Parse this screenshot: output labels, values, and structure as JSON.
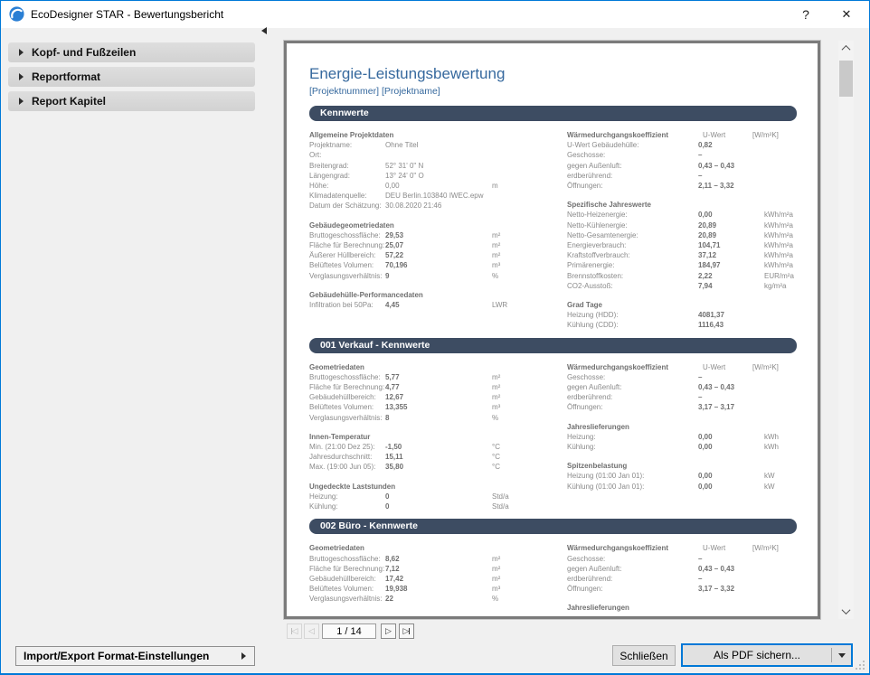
{
  "window": {
    "title": "EcoDesigner STAR - Bewertungsbericht",
    "help_icon": "?",
    "close_icon": "✕"
  },
  "sidebar": {
    "items": [
      "Kopf- und Fußzeilen",
      "Reportformat",
      "Report Kapitel"
    ]
  },
  "preview": {
    "pager": {
      "page_label": "1 / 14",
      "first_icon": "◁",
      "prev_icon": "◁",
      "next_icon": "▷",
      "last_icon": "▷"
    }
  },
  "footer": {
    "import_export_label": "Import/Export Format-Einstellungen",
    "close_label": "Schließen",
    "save_pdf_label": "Als PDF sichern..."
  },
  "report": {
    "title": "Energie-Leistungsbewertung",
    "subtitle": "[Projektnummer] [Projektname]",
    "colors": {
      "accent": "#36699e",
      "section_bar": "#3d4c62"
    },
    "sections": [
      {
        "header": "Kennwerte",
        "columns": [
          {
            "groups": [
              {
                "title": "Allgemeine Projektdaten",
                "bold": false,
                "rows": [
                  [
                    "Projektname:",
                    "Ohne Titel",
                    ""
                  ],
                  [
                    "Ort:",
                    "",
                    ""
                  ],
                  [
                    "Breitengrad:",
                    "52° 31' 0\" N",
                    ""
                  ],
                  [
                    "Längengrad:",
                    "13° 24' 0\" O",
                    ""
                  ],
                  [
                    "Höhe:",
                    "0,00",
                    "m"
                  ],
                  [
                    "Klimadatenquelle:",
                    "DEU  Berlin.103840  IWEC.epw",
                    ""
                  ],
                  [
                    "Datum der Schätzung:",
                    "30.08.2020 21:46",
                    ""
                  ]
                ]
              },
              {
                "title": "Gebäudegeometriedaten",
                "rows": [
                  [
                    "Bruttogeschossfläche:",
                    "29,53",
                    "m²"
                  ],
                  [
                    "Fläche für Berechnung:",
                    "25,07",
                    "m²"
                  ],
                  [
                    "Äußerer Hüllbereich:",
                    "57,22",
                    "m²"
                  ],
                  [
                    "Belüftetes Volumen:",
                    "70,196",
                    "m³"
                  ],
                  [
                    "Verglasungsverhältnis:",
                    "9",
                    "%"
                  ]
                ]
              },
              {
                "title": "Gebäudehülle-Performancedaten",
                "rows": [
                  [
                    "Infiltration bei 50Pa:",
                    "4,45",
                    "LWR"
                  ]
                ]
              }
            ]
          },
          {
            "groups": [
              {
                "title": "Wärmedurchgangskoeffizient",
                "head_value": "U-Wert",
                "head_unit": "[W/m²K]",
                "rows": [
                  [
                    "U-Wert Gebäudehülle:",
                    "0,82",
                    ""
                  ],
                  [
                    "Geschosse:",
                    "–",
                    ""
                  ],
                  [
                    "gegen Außenluft:",
                    "0,43 – 0,43",
                    ""
                  ],
                  [
                    "erdberührend:",
                    "–",
                    ""
                  ],
                  [
                    "Öffnungen:",
                    "2,11 – 3,32",
                    ""
                  ]
                ]
              },
              {
                "title": "Spezifische Jahreswerte",
                "rows": [
                  [
                    "Netto-Heizenergie:",
                    "0,00",
                    "kWh/m²a"
                  ],
                  [
                    "Netto-Kühlenergie:",
                    "20,89",
                    "kWh/m²a"
                  ],
                  [
                    "Netto-Gesamtenergie:",
                    "20,89",
                    "kWh/m²a"
                  ],
                  [
                    "Energieverbrauch:",
                    "104,71",
                    "kWh/m²a"
                  ],
                  [
                    "Kraftstoffverbrauch:",
                    "37,12",
                    "kWh/m²a"
                  ],
                  [
                    "Primärenergie:",
                    "184,97",
                    "kWh/m²a"
                  ],
                  [
                    "Brennstoffkosten:",
                    "2,22",
                    "EUR/m²a"
                  ],
                  [
                    "CO2-Ausstoß:",
                    "7,94",
                    "kg/m²a"
                  ]
                ]
              },
              {
                "title": "Grad Tage",
                "rows": [
                  [
                    "Heizung (HDD):",
                    "4081,37",
                    ""
                  ],
                  [
                    "Kühlung (CDD):",
                    "1116,43",
                    ""
                  ]
                ]
              }
            ]
          }
        ]
      },
      {
        "header": "001 Verkauf - Kennwerte",
        "columns": [
          {
            "groups": [
              {
                "title": "Geometriedaten",
                "rows": [
                  [
                    "Bruttogeschossfläche:",
                    "5,77",
                    "m²"
                  ],
                  [
                    "Fläche für Berechnung:",
                    "4,77",
                    "m²"
                  ],
                  [
                    "Gebäudehüllbereich:",
                    "12,67",
                    "m²"
                  ],
                  [
                    "Belüftetes Volumen:",
                    "13,355",
                    "m³"
                  ],
                  [
                    "Verglasungsverhältnis:",
                    "8",
                    "%"
                  ]
                ]
              },
              {
                "title": "Innen-Temperatur",
                "rows": [
                  [
                    "Min. (21:00 Dez 25):",
                    "-1,50",
                    "°C"
                  ],
                  [
                    "Jahresdurchschnitt:",
                    "15,11",
                    "°C"
                  ],
                  [
                    "Max. (19:00 Jun 05):",
                    "35,80",
                    "°C"
                  ]
                ]
              },
              {
                "title": "Ungedeckte Laststunden",
                "rows": [
                  [
                    "Heizung:",
                    "0",
                    "Std/a"
                  ],
                  [
                    "Kühlung:",
                    "0",
                    "Std/a"
                  ]
                ]
              }
            ]
          },
          {
            "groups": [
              {
                "title": "Wärmedurchgangskoeffizient",
                "head_value": "U-Wert",
                "head_unit": "[W/m²K]",
                "rows": [
                  [
                    "Geschosse:",
                    "–",
                    ""
                  ],
                  [
                    "gegen Außenluft:",
                    "0,43 – 0,43",
                    ""
                  ],
                  [
                    "erdberührend:",
                    "–",
                    ""
                  ],
                  [
                    "Öffnungen:",
                    "3,17 – 3,17",
                    ""
                  ]
                ]
              },
              {
                "title": "Jahreslieferungen",
                "rows": [
                  [
                    "Heizung:",
                    "0,00",
                    "kWh"
                  ],
                  [
                    "Kühlung:",
                    "0,00",
                    "kWh"
                  ]
                ]
              },
              {
                "title": "Spitzenbelastung",
                "rows": [
                  [
                    "Heizung (01:00 Jan 01):",
                    "0,00",
                    "kW"
                  ],
                  [
                    "Kühlung (01:00 Jan 01):",
                    "0,00",
                    "kW"
                  ]
                ]
              }
            ]
          }
        ]
      },
      {
        "header": "002 Büro - Kennwerte",
        "columns": [
          {
            "groups": [
              {
                "title": "Geometriedaten",
                "rows": [
                  [
                    "Bruttogeschossfläche:",
                    "8,62",
                    "m²"
                  ],
                  [
                    "Fläche für Berechnung:",
                    "7,12",
                    "m²"
                  ],
                  [
                    "Gebäudehüllbereich:",
                    "17,42",
                    "m²"
                  ],
                  [
                    "Belüftetes Volumen:",
                    "19,938",
                    "m³"
                  ],
                  [
                    "Verglasungsverhältnis:",
                    "22",
                    "%"
                  ]
                ]
              }
            ]
          },
          {
            "groups": [
              {
                "title": "Wärmedurchgangskoeffizient",
                "head_value": "U-Wert",
                "head_unit": "[W/m²K]",
                "rows": [
                  [
                    "Geschosse:",
                    "–",
                    ""
                  ],
                  [
                    "gegen Außenluft:",
                    "0,43 – 0,43",
                    ""
                  ],
                  [
                    "erdberührend:",
                    "–",
                    ""
                  ],
                  [
                    "Öffnungen:",
                    "3,17 – 3,32",
                    ""
                  ]
                ]
              },
              {
                "title": "Jahreslieferungen",
                "rows": []
              }
            ]
          }
        ]
      }
    ]
  }
}
